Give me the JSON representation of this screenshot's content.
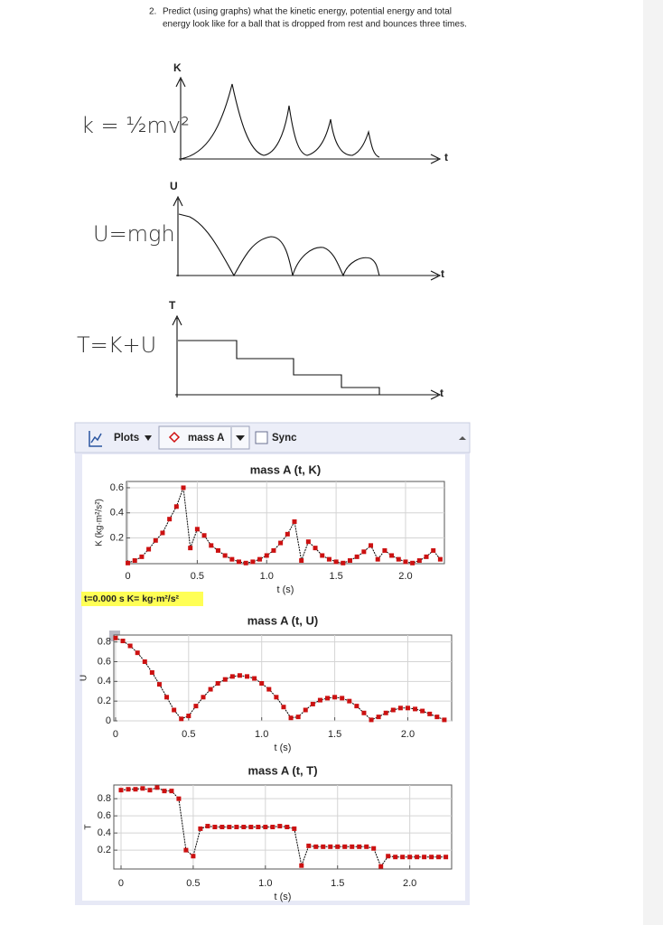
{
  "question": {
    "number": "2.",
    "lines": [
      "Predict (using graphs) what the kinetic energy, potential energy and total",
      "energy look like for a ball that is dropped from rest and bounces three times."
    ]
  },
  "sketches": [
    {
      "axis_label": "K",
      "time_label": "t",
      "formula": "k = ½mv²"
    },
    {
      "axis_label": "U",
      "time_label": "t",
      "formula": "U=mgh"
    },
    {
      "axis_label": "T",
      "time_label": "t",
      "formula": "T=K+U"
    }
  ],
  "toolbar": {
    "plots": "Plots",
    "object": "mass A",
    "sync": "Sync"
  },
  "status": "t=0.000 s  K= kg·m²/s²",
  "chart_data": [
    {
      "type": "line",
      "title": "mass A (t, K)",
      "x_label": "t (s)",
      "y_label": "K (kg·m²/s²)",
      "color": "#000000",
      "marker_color": "#cc1111",
      "grid": true,
      "x": [
        0,
        0.05,
        0.1,
        0.15,
        0.2,
        0.25,
        0.3,
        0.35,
        0.4,
        0.45,
        0.5,
        0.55,
        0.6,
        0.65,
        0.7,
        0.75,
        0.8,
        0.85,
        0.9,
        0.95,
        1.0,
        1.05,
        1.1,
        1.15,
        1.2,
        1.25,
        1.3,
        1.35,
        1.4,
        1.45,
        1.5,
        1.55,
        1.6,
        1.65,
        1.7,
        1.75,
        1.8,
        1.85,
        1.9,
        1.95,
        2.0,
        2.05,
        2.1,
        2.15,
        2.2,
        2.25
      ],
      "values": [
        0,
        0.02,
        0.05,
        0.11,
        0.18,
        0.24,
        0.35,
        0.45,
        0.6,
        0.12,
        0.27,
        0.22,
        0.14,
        0.1,
        0.06,
        0.03,
        0.01,
        0,
        0.01,
        0.03,
        0.06,
        0.1,
        0.16,
        0.23,
        0.33,
        0.02,
        0.17,
        0.12,
        0.06,
        0.03,
        0.01,
        0,
        0.02,
        0.05,
        0.09,
        0.14,
        0.03,
        0.1,
        0.06,
        0.03,
        0.01,
        0,
        0.02,
        0.05,
        0.1,
        0.03
      ],
      "xlim": [
        -0.01,
        2.28
      ],
      "ylim": [
        -0.005,
        0.65
      ],
      "xticks": [
        0,
        0.5,
        {
          "value": 1,
          "label": "1.0"
        },
        1.5,
        {
          "value": 2,
          "label": "2.0"
        }
      ],
      "yticks": [
        0.2,
        0.4,
        0.6
      ]
    },
    {
      "type": "line",
      "title": "mass A (t, U)",
      "x_label": "t (s)",
      "y_label": "U",
      "color": "#000000",
      "marker_color": "#cc1111",
      "grid": true,
      "x": [
        0,
        0.05,
        0.1,
        0.15,
        0.2,
        0.25,
        0.3,
        0.35,
        0.4,
        0.45,
        0.5,
        0.55,
        0.6,
        0.65,
        0.7,
        0.75,
        0.8,
        0.85,
        0.9,
        0.95,
        1.0,
        1.05,
        1.1,
        1.15,
        1.2,
        1.25,
        1.3,
        1.35,
        1.4,
        1.45,
        1.5,
        1.55,
        1.6,
        1.65,
        1.7,
        1.75,
        1.8,
        1.85,
        1.9,
        1.95,
        2.0,
        2.05,
        2.1,
        2.15,
        2.2,
        2.25
      ],
      "values": [
        0.84,
        0.81,
        0.76,
        0.69,
        0.6,
        0.49,
        0.37,
        0.24,
        0.11,
        0.02,
        0.05,
        0.15,
        0.24,
        0.32,
        0.38,
        0.42,
        0.45,
        0.46,
        0.45,
        0.43,
        0.38,
        0.32,
        0.24,
        0.14,
        0.03,
        0.04,
        0.11,
        0.17,
        0.21,
        0.23,
        0.24,
        0.23,
        0.2,
        0.15,
        0.08,
        0.01,
        0.04,
        0.08,
        0.11,
        0.13,
        0.13,
        0.12,
        0.1,
        0.07,
        0.04,
        0.01
      ],
      "xlim": [
        -0.012,
        2.3
      ],
      "ylim": [
        0,
        0.87
      ],
      "xticks": [
        0,
        0.5,
        {
          "value": 1,
          "label": "1.0"
        },
        1.5,
        {
          "value": 2,
          "label": "2.0"
        }
      ],
      "yticks": [
        0,
        0.2,
        0.4,
        0.6,
        0.8
      ]
    },
    {
      "type": "line",
      "title": "mass A (t, T)",
      "x_label": "t (s)",
      "y_label": "T",
      "color": "#000000",
      "marker_color": "#cc1111",
      "grid": true,
      "x": [
        0,
        0.05,
        0.1,
        0.15,
        0.2,
        0.25,
        0.3,
        0.35,
        0.4,
        0.45,
        0.5,
        0.55,
        0.6,
        0.65,
        0.7,
        0.75,
        0.8,
        0.85,
        0.9,
        0.95,
        1.0,
        1.05,
        1.1,
        1.15,
        1.2,
        1.25,
        1.3,
        1.35,
        1.4,
        1.45,
        1.5,
        1.55,
        1.6,
        1.65,
        1.7,
        1.75,
        1.8,
        1.85,
        1.9,
        1.95,
        2.0,
        2.05,
        2.1,
        2.15,
        2.2,
        2.25
      ],
      "values": [
        0.9,
        0.91,
        0.91,
        0.92,
        0.9,
        0.93,
        0.89,
        0.89,
        0.8,
        0.2,
        0.13,
        0.45,
        0.48,
        0.47,
        0.47,
        0.47,
        0.47,
        0.47,
        0.47,
        0.47,
        0.47,
        0.47,
        0.48,
        0.47,
        0.45,
        0.02,
        0.25,
        0.24,
        0.24,
        0.24,
        0.24,
        0.24,
        0.24,
        0.24,
        0.24,
        0.22,
        0.01,
        0.13,
        0.12,
        0.12,
        0.12,
        0.12,
        0.12,
        0.12,
        0.12,
        0.12
      ],
      "xlim": [
        -0.05,
        2.29
      ],
      "ylim": [
        -0.02,
        0.96
      ],
      "xticks": [
        0,
        0.5,
        {
          "value": 1,
          "label": "1.0"
        },
        1.5,
        {
          "value": 2,
          "label": "2.0"
        }
      ],
      "yticks": [
        0.2,
        0.4,
        0.6,
        0.8
      ]
    }
  ]
}
